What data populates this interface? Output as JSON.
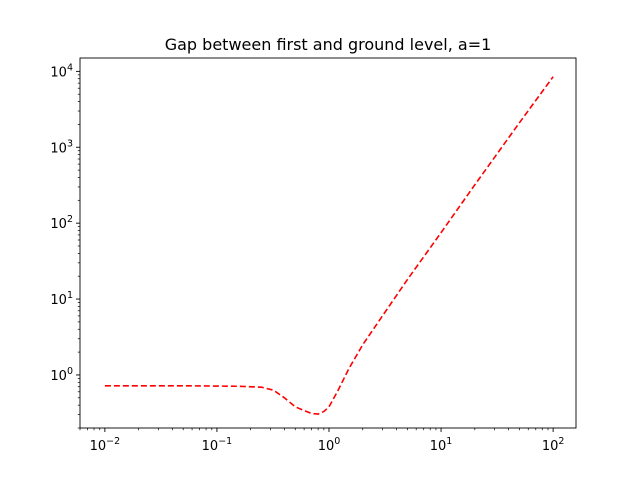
{
  "chart_data": {
    "type": "line",
    "title": "Gap between first and ground level, a=1",
    "xlabel": "",
    "ylabel": "",
    "xscale": "log",
    "yscale": "log",
    "xlim": [
      0.006,
      160
    ],
    "ylim": [
      0.2,
      15000
    ],
    "x_ticks": [
      {
        "value": 0.01,
        "base": "10",
        "exp": "−2"
      },
      {
        "value": 0.1,
        "base": "10",
        "exp": "−1"
      },
      {
        "value": 1,
        "base": "10",
        "exp": "0"
      },
      {
        "value": 10,
        "base": "10",
        "exp": "1"
      },
      {
        "value": 100,
        "base": "10",
        "exp": "2"
      }
    ],
    "y_ticks": [
      {
        "value": 1,
        "base": "10",
        "exp": "0"
      },
      {
        "value": 10,
        "base": "10",
        "exp": "1"
      },
      {
        "value": 100,
        "base": "10",
        "exp": "2"
      },
      {
        "value": 1000,
        "base": "10",
        "exp": "3"
      },
      {
        "value": 10000,
        "base": "10",
        "exp": "4"
      }
    ],
    "grid": false,
    "legend": "none",
    "series": [
      {
        "color": "#ff0000",
        "linestyle": "dashed",
        "x": [
          0.01,
          0.05,
          0.15,
          0.25,
          0.32,
          0.4,
          0.5,
          0.6,
          0.7,
          0.8,
          0.9,
          1.0,
          1.2,
          1.5,
          2,
          3,
          5,
          10,
          20,
          50,
          100
        ],
        "y": [
          0.72,
          0.72,
          0.71,
          0.69,
          0.63,
          0.5,
          0.38,
          0.34,
          0.31,
          0.305,
          0.33,
          0.38,
          0.62,
          1.2,
          2.5,
          6,
          18,
          75,
          320,
          2100,
          8500
        ]
      }
    ]
  }
}
